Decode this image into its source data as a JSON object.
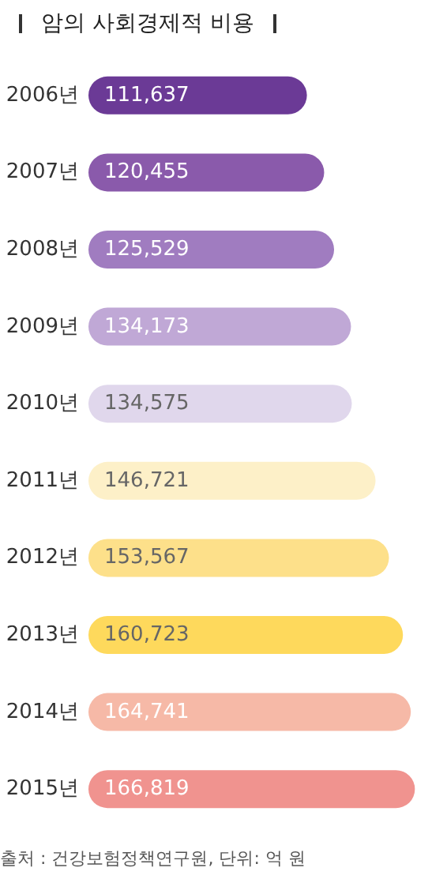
{
  "chart_data": {
    "type": "bar",
    "orientation": "horizontal",
    "title": "암의 사회경제적 비용",
    "categories": [
      "2006년",
      "2007년",
      "2008년",
      "2009년",
      "2010년",
      "2011년",
      "2012년",
      "2013년",
      "2014년",
      "2015년"
    ],
    "values": [
      111637,
      120455,
      125529,
      134173,
      134575,
      146721,
      153567,
      160723,
      164741,
      166819
    ],
    "colors": [
      "#6b3a96",
      "#8a5aab",
      "#a07cc0",
      "#c0a8d6",
      "#e0d7ec",
      "#fdf0c8",
      "#fde08a",
      "#fed95c",
      "#f6b9a7",
      "#f0938f"
    ],
    "value_labels": [
      "111,637",
      "120,455",
      "125,529",
      "134,173",
      "134,575",
      "146,721",
      "153,567",
      "160,723",
      "164,741",
      "166,819"
    ],
    "annotations": [
      "출처 : 건강보험정책연구원, 단위: 억 원"
    ]
  }
}
